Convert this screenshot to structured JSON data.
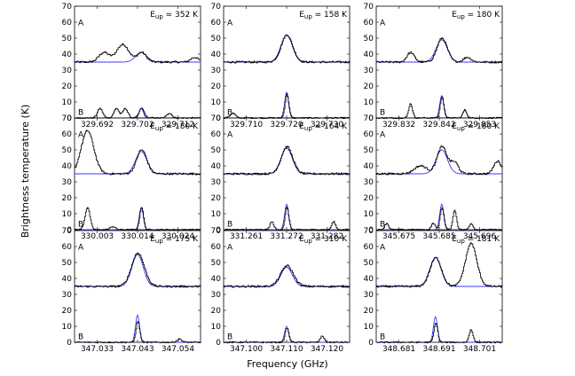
{
  "chart_data": {
    "type": "line",
    "ylabel": "Brightness temperature (K)",
    "xlabel": "Frequency (GHz)",
    "ylim": [
      0,
      70
    ],
    "yticks": [
      0,
      10,
      20,
      30,
      40,
      50,
      60,
      70
    ],
    "colors": {
      "observed": "#000000",
      "model": "#3a3af5"
    },
    "panels": [
      {
        "eup_prefix": "E",
        "eup_sub": "up",
        "eup_value": " = 352 K",
        "label_a": "A",
        "label_b": "B",
        "xticks": [
          "329.692",
          "329.702",
          "329.712"
        ],
        "offset_a": 35,
        "offset_b": 0,
        "model_peak_a": 6,
        "model_peak_b": 6,
        "center": 0.53,
        "obs_a": [
          {
            "c": 0.53,
            "h": 6,
            "w": 0.035
          },
          {
            "c": 0.23,
            "h": 6,
            "w": 0.04
          },
          {
            "c": 0.38,
            "h": 11,
            "w": 0.05
          },
          {
            "c": 0.95,
            "h": 3,
            "w": 0.03
          }
        ],
        "obs_b": [
          {
            "c": 0.53,
            "h": 6,
            "w": 0.02
          },
          {
            "c": 0.2,
            "h": 6,
            "w": 0.02
          },
          {
            "c": 0.33,
            "h": 6,
            "w": 0.02
          },
          {
            "c": 0.4,
            "h": 6,
            "w": 0.02
          },
          {
            "c": 0.75,
            "h": 3,
            "w": 0.02
          }
        ]
      },
      {
        "eup_prefix": "E",
        "eup_sub": "up",
        "eup_value": " = 158 K",
        "label_a": "A",
        "label_b": "B",
        "xticks": [
          "329.710",
          "329.720",
          "329.730"
        ],
        "offset_a": 35,
        "offset_b": 0,
        "model_peak_a": 17,
        "model_peak_b": 16,
        "center": 0.5,
        "obs_a": [
          {
            "c": 0.5,
            "h": 17,
            "w": 0.045
          }
        ],
        "obs_b": [
          {
            "c": 0.5,
            "h": 15,
            "w": 0.015
          },
          {
            "c": 0.07,
            "h": 3,
            "w": 0.02
          }
        ]
      },
      {
        "eup_prefix": "E",
        "eup_sub": "up",
        "eup_value": " = 180 K",
        "label_a": "A",
        "label_b": "B",
        "xticks": [
          "329.832",
          "329.842",
          "329.853"
        ],
        "offset_a": 35,
        "offset_b": 0,
        "model_peak_a": 14,
        "model_peak_b": 14,
        "center": 0.52,
        "obs_a": [
          {
            "c": 0.52,
            "h": 15,
            "w": 0.04
          },
          {
            "c": 0.27,
            "h": 6,
            "w": 0.03
          },
          {
            "c": 0.72,
            "h": 3,
            "w": 0.03
          }
        ],
        "obs_b": [
          {
            "c": 0.52,
            "h": 13,
            "w": 0.015
          },
          {
            "c": 0.27,
            "h": 9,
            "w": 0.015
          },
          {
            "c": 0.7,
            "h": 5,
            "w": 0.015
          }
        ]
      },
      {
        "eup_prefix": "E",
        "eup_sub": "up",
        "eup_value": " = 180 K",
        "label_a": "A",
        "label_b": "B",
        "xticks": [
          "330.003",
          "330.014",
          "330.024"
        ],
        "offset_a": 35,
        "offset_b": 0,
        "model_peak_a": 14,
        "model_peak_b": 14,
        "center": 0.53,
        "obs_a": [
          {
            "c": 0.53,
            "h": 15,
            "w": 0.04
          },
          {
            "c": 0.1,
            "h": 27,
            "w": 0.05
          }
        ],
        "obs_b": [
          {
            "c": 0.53,
            "h": 14,
            "w": 0.015
          },
          {
            "c": 0.1,
            "h": 14,
            "w": 0.02
          },
          {
            "c": 0.3,
            "h": 2,
            "w": 0.02
          }
        ]
      },
      {
        "eup_prefix": "E",
        "eup_sub": "up",
        "eup_value": " = 164 K",
        "label_a": "A",
        "label_b": "B",
        "xticks": [
          "331.261",
          "331.272",
          "331.282"
        ],
        "offset_a": 35,
        "offset_b": 0,
        "model_peak_a": 16,
        "model_peak_b": 16,
        "center": 0.5,
        "obs_a": [
          {
            "c": 0.5,
            "h": 17,
            "w": 0.045
          }
        ],
        "obs_b": [
          {
            "c": 0.5,
            "h": 14,
            "w": 0.015
          },
          {
            "c": 0.38,
            "h": 5,
            "w": 0.015
          },
          {
            "c": 0.87,
            "h": 5,
            "w": 0.015
          }
        ]
      },
      {
        "eup_prefix": "E",
        "eup_sub": "up",
        "eup_value": " = 180 K",
        "label_a": "A",
        "label_b": "B",
        "xticks": [
          "345.675",
          "345.685",
          "345.696"
        ],
        "offset_a": 35,
        "offset_b": 0,
        "model_peak_a": 15,
        "model_peak_b": 16,
        "center": 0.52,
        "obs_a": [
          {
            "c": 0.52,
            "h": 17,
            "w": 0.04
          },
          {
            "c": 0.62,
            "h": 7,
            "w": 0.03
          },
          {
            "c": 0.35,
            "h": 5,
            "w": 0.05
          },
          {
            "c": 0.96,
            "h": 8,
            "w": 0.03
          }
        ],
        "obs_b": [
          {
            "c": 0.52,
            "h": 14,
            "w": 0.015
          },
          {
            "c": 0.62,
            "h": 12,
            "w": 0.015
          },
          {
            "c": 0.45,
            "h": 4,
            "w": 0.015
          },
          {
            "c": 0.75,
            "h": 4,
            "w": 0.015
          },
          {
            "c": 0.08,
            "h": 4,
            "w": 0.015
          }
        ]
      },
      {
        "eup_prefix": "E",
        "eup_sub": "up",
        "eup_value": " = 175 K",
        "label_a": "A",
        "label_b": "B",
        "xticks": [
          "347.033",
          "347.043",
          "347.054"
        ],
        "offset_a": 35,
        "offset_b": 0,
        "model_peak_a": 20,
        "model_peak_b": 17,
        "center": 0.5,
        "obs_a": [
          {
            "c": 0.5,
            "h": 21,
            "w": 0.05
          }
        ],
        "obs_b": [
          {
            "c": 0.5,
            "h": 13,
            "w": 0.015
          },
          {
            "c": 0.83,
            "h": 2,
            "w": 0.02
          }
        ]
      },
      {
        "eup_prefix": "E",
        "eup_sub": "up",
        "eup_value": " = 310 K",
        "label_a": "A",
        "label_b": "B",
        "xticks": [
          "347.100",
          "347.110",
          "347.120"
        ],
        "offset_a": 35,
        "offset_b": 0,
        "model_peak_a": 12,
        "model_peak_b": 10,
        "center": 0.5,
        "obs_a": [
          {
            "c": 0.5,
            "h": 13,
            "w": 0.05
          }
        ],
        "obs_b": [
          {
            "c": 0.5,
            "h": 9,
            "w": 0.015
          },
          {
            "c": 0.78,
            "h": 4,
            "w": 0.015
          }
        ]
      },
      {
        "eup_prefix": "E",
        "eup_sub": "up",
        "eup_value": " = 181 K",
        "label_a": "A",
        "label_b": "B",
        "xticks": [
          "348.681",
          "348.691",
          "348.701"
        ],
        "offset_a": 35,
        "offset_b": 0,
        "model_peak_a": 18,
        "model_peak_b": 16,
        "center": 0.47,
        "obs_a": [
          {
            "c": 0.47,
            "h": 18,
            "w": 0.045
          },
          {
            "c": 0.75,
            "h": 27,
            "w": 0.045
          }
        ],
        "obs_b": [
          {
            "c": 0.47,
            "h": 12,
            "w": 0.015
          },
          {
            "c": 0.75,
            "h": 8,
            "w": 0.015
          }
        ]
      }
    ]
  }
}
